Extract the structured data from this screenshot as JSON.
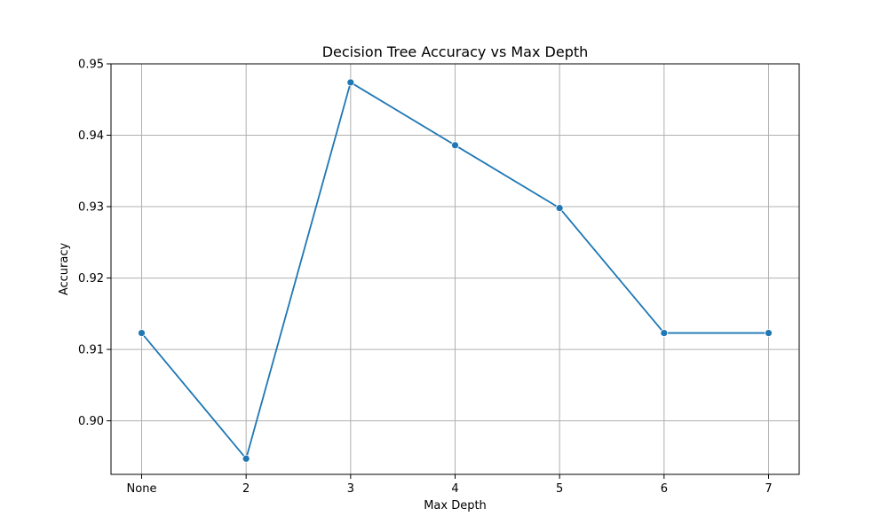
{
  "chart_data": {
    "type": "line",
    "title": "Decision Tree Accuracy vs Max Depth",
    "xlabel": "Max Depth",
    "ylabel": "Accuracy",
    "categories": [
      "None",
      "2",
      "3",
      "4",
      "5",
      "6",
      "7"
    ],
    "series": [
      {
        "values": [
          0.9123,
          0.8947,
          0.9474,
          0.9386,
          0.9298,
          0.9123,
          0.9123
        ],
        "color": "#1f77b4",
        "marker": "circle"
      }
    ],
    "ylim": [
      0.8925,
      0.95
    ],
    "yticks": [
      0.9,
      0.91,
      0.92,
      0.93,
      0.94,
      0.95
    ],
    "ytick_labels": [
      "0.90",
      "0.91",
      "0.92",
      "0.93",
      "0.94",
      "0.95"
    ],
    "grid": true,
    "colors": {
      "grid": "#b0b0b0",
      "axis": "#000000",
      "line": "#1f77b4"
    }
  }
}
